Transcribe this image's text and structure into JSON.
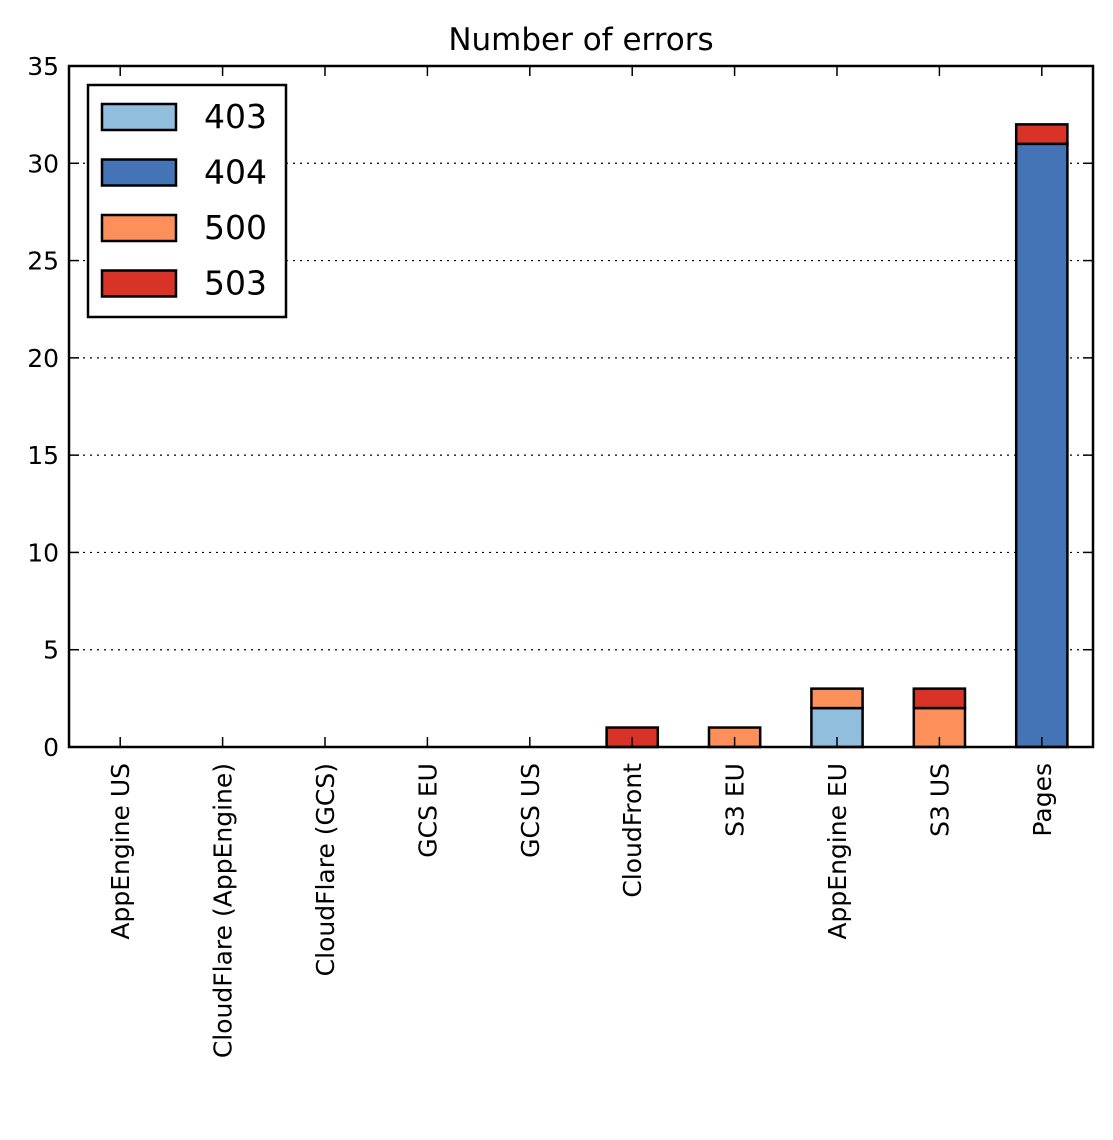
{
  "chart_data": {
    "type": "bar",
    "stacked": true,
    "title": "Number of errors",
    "xlabel": "",
    "ylabel": "",
    "ylim": [
      0,
      35
    ],
    "yticks": [
      0,
      5,
      10,
      15,
      20,
      25,
      30,
      35
    ],
    "grid": "y, dotted",
    "legend_position": "top-left",
    "categories": [
      "AppEngine US",
      "CloudFlare (AppEngine)",
      "CloudFlare (GCS)",
      "GCS EU",
      "GCS US",
      "CloudFront",
      "S3 EU",
      "AppEngine EU",
      "S3 US",
      "Pages"
    ],
    "series": [
      {
        "name": "403",
        "color": "#92bedd",
        "values": [
          0,
          0,
          0,
          0,
          0,
          0,
          0,
          2,
          0,
          0
        ]
      },
      {
        "name": "404",
        "color": "#4474b5",
        "values": [
          0,
          0,
          0,
          0,
          0,
          0,
          0,
          0,
          0,
          31
        ]
      },
      {
        "name": "500",
        "color": "#fd8f5a",
        "values": [
          0,
          0,
          0,
          0,
          0,
          0,
          1,
          1,
          2,
          0
        ]
      },
      {
        "name": "503",
        "color": "#d93327",
        "values": [
          0,
          0,
          0,
          0,
          0,
          1,
          0,
          0,
          1,
          1
        ]
      }
    ]
  }
}
